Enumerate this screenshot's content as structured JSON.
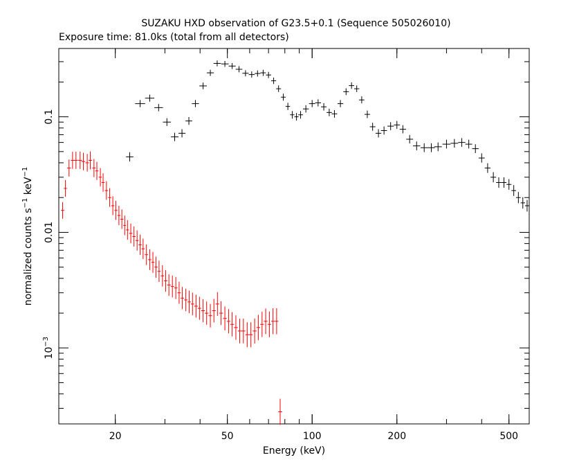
{
  "chart_data": {
    "type": "scatter",
    "title": "SUZAKU HXD observation of G23.5+0.1 (Sequence 505026010)",
    "subtitle": "Exposure time: 81.0ks (total from all detectors)",
    "xlabel": "Energy (keV)",
    "ylabel_prefix": "normalized counts s",
    "ylabel_exp1": "−1",
    "ylabel_mid": " keV",
    "ylabel_exp2": "−1",
    "x_scale": "log",
    "y_scale": "log",
    "xlim": [
      12.6,
      590
    ],
    "ylim": [
      0.00022,
      0.39
    ],
    "grid": false,
    "x_ticks": [
      {
        "value": 20,
        "label": "20"
      },
      {
        "value": 50,
        "label": "50"
      },
      {
        "value": 100,
        "label": "100"
      },
      {
        "value": 200,
        "label": "200"
      },
      {
        "value": 500,
        "label": "500"
      }
    ],
    "y_ticks": [
      {
        "value": 0.1,
        "label": "0.1"
      },
      {
        "value": 0.01,
        "label": "0.01"
      },
      {
        "value": 0.001,
        "label": "10",
        "exp": "−3"
      }
    ],
    "series": [
      {
        "color": "#000000",
        "points": [
          [
            22.5,
            0.045
          ],
          [
            24.5,
            0.13
          ],
          [
            26.5,
            0.145
          ],
          [
            28.5,
            0.12
          ],
          [
            30.5,
            0.09
          ],
          [
            32.5,
            0.067
          ],
          [
            34.5,
            0.072
          ],
          [
            36.5,
            0.092
          ],
          [
            38.5,
            0.13
          ],
          [
            41,
            0.185
          ],
          [
            43.5,
            0.24
          ],
          [
            46,
            0.29
          ],
          [
            49,
            0.287
          ],
          [
            52,
            0.275
          ],
          [
            55,
            0.258
          ],
          [
            58,
            0.238
          ],
          [
            61,
            0.232
          ],
          [
            64,
            0.237
          ],
          [
            67,
            0.24
          ],
          [
            70,
            0.23
          ],
          [
            73,
            0.205
          ],
          [
            76,
            0.175
          ],
          [
            79,
            0.148
          ],
          [
            82,
            0.123
          ],
          [
            85,
            0.104
          ],
          [
            88,
            0.1
          ],
          [
            91,
            0.104
          ],
          [
            95,
            0.117
          ],
          [
            100,
            0.13
          ],
          [
            105,
            0.132
          ],
          [
            110,
            0.122
          ],
          [
            115,
            0.109
          ],
          [
            120,
            0.106
          ],
          [
            126,
            0.13
          ],
          [
            132,
            0.165
          ],
          [
            138,
            0.186
          ],
          [
            144,
            0.175
          ],
          [
            150,
            0.14
          ],
          [
            157,
            0.105
          ],
          [
            164,
            0.082
          ],
          [
            172,
            0.072
          ],
          [
            180,
            0.076
          ],
          [
            190,
            0.083
          ],
          [
            200,
            0.085
          ],
          [
            210,
            0.078
          ],
          [
            222,
            0.064
          ],
          [
            235,
            0.056
          ],
          [
            250,
            0.054
          ],
          [
            265,
            0.054
          ],
          [
            280,
            0.055
          ],
          [
            300,
            0.058
          ],
          [
            320,
            0.059
          ],
          [
            340,
            0.06
          ],
          [
            360,
            0.058
          ],
          [
            380,
            0.053
          ],
          [
            400,
            0.044
          ],
          [
            420,
            0.036
          ],
          [
            440,
            0.03
          ],
          [
            460,
            0.027
          ],
          [
            480,
            0.027
          ],
          [
            500,
            0.026
          ],
          [
            520,
            0.023
          ],
          [
            540,
            0.02
          ],
          [
            560,
            0.018
          ],
          [
            580,
            0.017
          ]
        ]
      },
      {
        "color": "#ff0000",
        "points": [
          [
            13.0,
            0.0155
          ],
          [
            13.3,
            0.024
          ],
          [
            13.7,
            0.036
          ],
          [
            14.1,
            0.042
          ],
          [
            14.5,
            0.042
          ],
          [
            15.0,
            0.042
          ],
          [
            15.4,
            0.041
          ],
          [
            15.9,
            0.04
          ],
          [
            16.3,
            0.042
          ],
          [
            16.8,
            0.036
          ],
          [
            17.2,
            0.034
          ],
          [
            17.7,
            0.03
          ],
          [
            18.1,
            0.027
          ],
          [
            18.6,
            0.023
          ],
          [
            19.1,
            0.02
          ],
          [
            19.6,
            0.017
          ],
          [
            20.1,
            0.0155
          ],
          [
            20.6,
            0.014
          ],
          [
            21.1,
            0.013
          ],
          [
            21.6,
            0.0115
          ],
          [
            22.1,
            0.0105
          ],
          [
            22.7,
            0.0098
          ],
          [
            23.3,
            0.0092
          ],
          [
            23.9,
            0.0085
          ],
          [
            24.5,
            0.0078
          ],
          [
            25.1,
            0.0072
          ],
          [
            25.8,
            0.0064
          ],
          [
            26.5,
            0.0058
          ],
          [
            27.2,
            0.0055
          ],
          [
            27.9,
            0.005
          ],
          [
            28.6,
            0.0046
          ],
          [
            29.4,
            0.0042
          ],
          [
            30.2,
            0.0038
          ],
          [
            31,
            0.0035
          ],
          [
            31.9,
            0.0034
          ],
          [
            32.8,
            0.0033
          ],
          [
            33.7,
            0.003
          ],
          [
            34.6,
            0.0027
          ],
          [
            35.6,
            0.0026
          ],
          [
            36.6,
            0.0025
          ],
          [
            37.6,
            0.0024
          ],
          [
            38.7,
            0.0023
          ],
          [
            39.8,
            0.0022
          ],
          [
            41,
            0.0021
          ],
          [
            42.2,
            0.002
          ],
          [
            43.5,
            0.0019
          ],
          [
            44.8,
            0.0021
          ],
          [
            46.1,
            0.0024
          ],
          [
            47.5,
            0.002
          ],
          [
            49,
            0.0018
          ],
          [
            50.5,
            0.0017
          ],
          [
            52,
            0.0016
          ],
          [
            53.6,
            0.0015
          ],
          [
            55.3,
            0.0014
          ],
          [
            57,
            0.0014
          ],
          [
            58.8,
            0.0013
          ],
          [
            60.6,
            0.0013
          ],
          [
            62.5,
            0.0014
          ],
          [
            64.4,
            0.0015
          ],
          [
            66.4,
            0.0016
          ],
          [
            68.4,
            0.0017
          ],
          [
            70.5,
            0.0016
          ],
          [
            72.6,
            0.0017
          ],
          [
            74.8,
            0.0017
          ],
          [
            77,
            0.00028
          ]
        ]
      }
    ]
  }
}
